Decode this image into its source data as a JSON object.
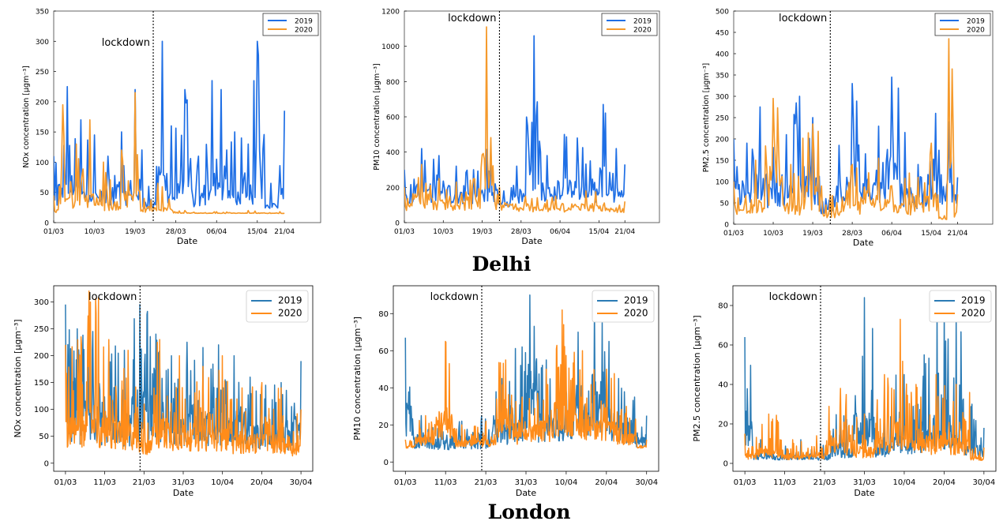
{
  "city_labels": {
    "top": "Delhi",
    "bottom": "London"
  },
  "colors": {
    "delhi_2019": "#1f6fe5",
    "delhi_2020": "#f59a2c",
    "london_2019": "#2b7bb5",
    "london_2020": "#ff8c1a"
  },
  "chart_data": [
    {
      "type": "line",
      "city": "Delhi",
      "style": "matlab",
      "xlabel": "Date",
      "ylabel": "NOx concentration [μgm⁻³]",
      "xlim": [
        "2020-03-01",
        "2020-04-29"
      ],
      "ylim": [
        0,
        350
      ],
      "yticks": [
        0,
        50,
        100,
        150,
        200,
        250,
        300,
        350
      ],
      "xticks": [
        "01/03",
        "10/03",
        "19/03",
        "28/03",
        "06/04",
        "15/04",
        "21/04"
      ],
      "xtick_dates": [
        "2020-03-01",
        "2020-03-10",
        "2020-03-19",
        "2020-03-28",
        "2020-04-06",
        "2020-04-15",
        "2020-04-21"
      ],
      "legend": {
        "position": "top-right",
        "entries": [
          "2019",
          "2020"
        ]
      },
      "annotation": {
        "text": "lockdown",
        "x": "2020-03-23"
      },
      "series": [
        {
          "name": "2019",
          "x": [
            "2020-03-01",
            "2020-03-04",
            "2020-03-07",
            "2020-03-10",
            "2020-03-13",
            "2020-03-16",
            "2020-03-19",
            "2020-03-22",
            "2020-03-25",
            "2020-03-27",
            "2020-03-30",
            "2020-04-02",
            "2020-04-05",
            "2020-04-07",
            "2020-04-10",
            "2020-04-13",
            "2020-04-15",
            "2020-04-18",
            "2020-04-21"
          ],
          "values": [
            110,
            225,
            170,
            145,
            110,
            150,
            220,
            60,
            300,
            160,
            220,
            110,
            235,
            220,
            150,
            130,
            300,
            65,
            185
          ]
        },
        {
          "name": "2020",
          "x": [
            "2020-03-01",
            "2020-03-03",
            "2020-03-06",
            "2020-03-09",
            "2020-03-12",
            "2020-03-16",
            "2020-03-19",
            "2020-03-21",
            "2020-03-24",
            "2020-03-30",
            "2020-04-06",
            "2020-04-13",
            "2020-04-20"
          ],
          "values": [
            45,
            195,
            130,
            170,
            100,
            120,
            215,
            40,
            65,
            20,
            18,
            20,
            18
          ]
        }
      ]
    },
    {
      "type": "line",
      "city": "Delhi",
      "style": "matlab",
      "xlabel": "Date",
      "ylabel": "PM10 concentration [μgm⁻³]",
      "xlim": [
        "2020-03-01",
        "2020-04-29"
      ],
      "ylim": [
        0,
        1200
      ],
      "yticks": [
        0,
        200,
        400,
        600,
        800,
        1000,
        1200
      ],
      "xticks": [
        "01/03",
        "10/03",
        "19/03",
        "28/03",
        "06/04",
        "15/04",
        "21/04"
      ],
      "xtick_dates": [
        "2020-03-01",
        "2020-03-10",
        "2020-03-19",
        "2020-03-28",
        "2020-04-06",
        "2020-04-15",
        "2020-04-21"
      ],
      "legend": {
        "position": "top-right",
        "entries": [
          "2019",
          "2020"
        ]
      },
      "annotation": {
        "text": "lockdown",
        "x": "2020-03-23"
      },
      "series": [
        {
          "name": "2019",
          "x": [
            "2020-03-01",
            "2020-03-05",
            "2020-03-09",
            "2020-03-13",
            "2020-03-17",
            "2020-03-21",
            "2020-03-24",
            "2020-03-27",
            "2020-03-31",
            "2020-04-03",
            "2020-04-07",
            "2020-04-10",
            "2020-04-13",
            "2020-04-16",
            "2020-04-19",
            "2020-04-21"
          ],
          "values": [
            300,
            420,
            380,
            320,
            300,
            420,
            180,
            320,
            1060,
            380,
            500,
            480,
            350,
            670,
            420,
            330
          ]
        },
        {
          "name": "2020",
          "x": [
            "2020-03-01",
            "2020-03-05",
            "2020-03-09",
            "2020-03-13",
            "2020-03-17",
            "2020-03-20",
            "2020-03-23",
            "2020-03-29",
            "2020-04-05",
            "2020-04-12",
            "2020-04-21"
          ],
          "values": [
            200,
            330,
            250,
            230,
            250,
            1110,
            200,
            150,
            150,
            180,
            120
          ]
        }
      ]
    },
    {
      "type": "line",
      "city": "Delhi",
      "style": "matlab",
      "xlabel": "Date",
      "ylabel": "PM2.5 concentration [μgm⁻³]",
      "xlim": [
        "2020-03-01",
        "2020-04-29"
      ],
      "ylim": [
        0,
        500
      ],
      "yticks": [
        0,
        50,
        100,
        150,
        200,
        250,
        300,
        350,
        400,
        450,
        500
      ],
      "xticks": [
        "01/03",
        "10/03",
        "19/03",
        "28/03",
        "06/04",
        "15/04",
        "21/04"
      ],
      "xtick_dates": [
        "2020-03-01",
        "2020-03-10",
        "2020-03-19",
        "2020-03-28",
        "2020-04-06",
        "2020-04-15",
        "2020-04-21"
      ],
      "legend": {
        "position": "top-right",
        "entries": [
          "2019",
          "2020"
        ]
      },
      "annotation": {
        "text": "lockdown",
        "x": "2020-03-23"
      },
      "series": [
        {
          "name": "2019",
          "x": [
            "2020-03-01",
            "2020-03-04",
            "2020-03-07",
            "2020-03-10",
            "2020-03-13",
            "2020-03-16",
            "2020-03-19",
            "2020-03-22",
            "2020-03-25",
            "2020-03-28",
            "2020-03-31",
            "2020-04-03",
            "2020-04-06",
            "2020-04-09",
            "2020-04-12",
            "2020-04-16",
            "2020-04-19",
            "2020-04-21"
          ],
          "values": [
            200,
            190,
            275,
            180,
            210,
            300,
            250,
            60,
            185,
            330,
            165,
            230,
            345,
            215,
            140,
            260,
            240,
            110
          ]
        },
        {
          "name": "2020",
          "x": [
            "2020-03-01",
            "2020-03-06",
            "2020-03-10",
            "2020-03-14",
            "2020-03-19",
            "2020-03-23",
            "2020-03-28",
            "2020-04-03",
            "2020-04-10",
            "2020-04-15",
            "2020-04-18",
            "2020-04-19",
            "2020-04-21"
          ],
          "values": [
            100,
            150,
            295,
            140,
            235,
            70,
            140,
            155,
            120,
            190,
            20,
            435,
            70
          ]
        }
      ]
    },
    {
      "type": "line",
      "city": "London",
      "style": "matplotlib",
      "xlabel": "Date",
      "ylabel": "NOx concentration [μgm⁻³]",
      "xlim": [
        "2020-02-27",
        "2020-05-03"
      ],
      "ylim": [
        -15,
        330
      ],
      "yticks": [
        0,
        50,
        100,
        150,
        200,
        250,
        300
      ],
      "xticks": [
        "01/03",
        "11/03",
        "21/03",
        "31/03",
        "10/04",
        "20/04",
        "30/04"
      ],
      "xtick_dates": [
        "2020-03-01",
        "2020-03-11",
        "2020-03-21",
        "2020-03-31",
        "2020-04-10",
        "2020-04-20",
        "2020-04-30"
      ],
      "legend": {
        "position": "top-right",
        "entries": [
          "2019",
          "2020"
        ]
      },
      "annotation": {
        "text": "lockdown",
        "x": "2020-03-20"
      },
      "series": [
        {
          "name": "2019",
          "x": [
            "2020-03-01",
            "2020-03-04",
            "2020-03-08",
            "2020-03-12",
            "2020-03-16",
            "2020-03-20",
            "2020-03-24",
            "2020-03-28",
            "2020-04-01",
            "2020-04-05",
            "2020-04-09",
            "2020-04-13",
            "2020-04-17",
            "2020-04-21",
            "2020-04-25",
            "2020-04-30"
          ],
          "values": [
            295,
            250,
            245,
            220,
            210,
            295,
            240,
            200,
            225,
            215,
            220,
            200,
            160,
            145,
            150,
            190
          ]
        },
        {
          "name": "2020",
          "x": [
            "2020-03-01",
            "2020-03-05",
            "2020-03-07",
            "2020-03-12",
            "2020-03-17",
            "2020-03-21",
            "2020-03-25",
            "2020-03-30",
            "2020-04-05",
            "2020-04-10",
            "2020-04-15",
            "2020-04-20",
            "2020-04-25",
            "2020-04-30"
          ],
          "values": [
            220,
            235,
            320,
            230,
            210,
            110,
            230,
            200,
            180,
            200,
            140,
            150,
            140,
            100
          ]
        }
      ]
    },
    {
      "type": "line",
      "city": "London",
      "style": "matplotlib",
      "xlabel": "Date",
      "ylabel": "PM10 concentration [μgm⁻³]",
      "xlim": [
        "2020-02-27",
        "2020-05-03"
      ],
      "ylim": [
        -5,
        95
      ],
      "yticks": [
        0,
        20,
        40,
        60,
        80
      ],
      "xticks": [
        "01/03",
        "11/03",
        "21/03",
        "31/03",
        "10/04",
        "20/04",
        "30/04"
      ],
      "xtick_dates": [
        "2020-03-01",
        "2020-03-11",
        "2020-03-21",
        "2020-03-31",
        "2020-04-10",
        "2020-04-20",
        "2020-04-30"
      ],
      "legend": {
        "position": "top-right",
        "entries": [
          "2019",
          "2020"
        ]
      },
      "annotation": {
        "text": "lockdown",
        "x": "2020-03-20"
      },
      "series": [
        {
          "name": "2019",
          "x": [
            "2020-03-01",
            "2020-03-05",
            "2020-03-10",
            "2020-03-15",
            "2020-03-20",
            "2020-03-25",
            "2020-03-30",
            "2020-04-01",
            "2020-04-05",
            "2020-04-09",
            "2020-04-13",
            "2020-04-17",
            "2020-04-19",
            "2020-04-23",
            "2020-04-27",
            "2020-04-30"
          ],
          "values": [
            67,
            25,
            20,
            22,
            25,
            45,
            62,
            90,
            55,
            50,
            70,
            85,
            75,
            45,
            35,
            25
          ]
        },
        {
          "name": "2020",
          "x": [
            "2020-03-01",
            "2020-03-06",
            "2020-03-11",
            "2020-03-15",
            "2020-03-21",
            "2020-03-26",
            "2020-03-30",
            "2020-04-05",
            "2020-04-09",
            "2020-04-14",
            "2020-04-20",
            "2020-04-25",
            "2020-04-30"
          ],
          "values": [
            12,
            25,
            65,
            20,
            22,
            55,
            35,
            50,
            82,
            60,
            50,
            30,
            12
          ]
        }
      ]
    },
    {
      "type": "line",
      "city": "London",
      "style": "matplotlib",
      "xlabel": "Date",
      "ylabel": "PM2.5 concentration [μgm⁻³]",
      "xlim": [
        "2020-02-27",
        "2020-05-03"
      ],
      "ylim": [
        -4,
        90
      ],
      "yticks": [
        0,
        20,
        40,
        60,
        80
      ],
      "xticks": [
        "01/03",
        "11/03",
        "21/03",
        "31/03",
        "10/04",
        "20/04",
        "30/04"
      ],
      "xtick_dates": [
        "2020-03-01",
        "2020-03-11",
        "2020-03-21",
        "2020-03-31",
        "2020-04-10",
        "2020-04-20",
        "2020-04-30"
      ],
      "legend": {
        "position": "top-right",
        "entries": [
          "2019",
          "2020"
        ]
      },
      "annotation": {
        "text": "lockdown",
        "x": "2020-03-20"
      },
      "series": [
        {
          "name": "2019",
          "x": [
            "2020-03-01",
            "2020-03-05",
            "2020-03-10",
            "2020-03-15",
            "2020-03-20",
            "2020-03-25",
            "2020-03-31",
            "2020-04-05",
            "2020-04-10",
            "2020-04-15",
            "2020-04-20",
            "2020-04-23",
            "2020-04-27",
            "2020-04-30"
          ],
          "values": [
            64,
            12,
            10,
            12,
            10,
            25,
            84,
            30,
            45,
            55,
            80,
            75,
            30,
            18
          ]
        },
        {
          "name": "2020",
          "x": [
            "2020-03-01",
            "2020-03-07",
            "2020-03-13",
            "2020-03-19",
            "2020-03-25",
            "2020-03-31",
            "2020-04-05",
            "2020-04-09",
            "2020-04-13",
            "2020-04-18",
            "2020-04-23",
            "2020-04-30"
          ],
          "values": [
            15,
            25,
            12,
            14,
            38,
            25,
            45,
            73,
            40,
            45,
            40,
            8
          ]
        }
      ]
    }
  ]
}
